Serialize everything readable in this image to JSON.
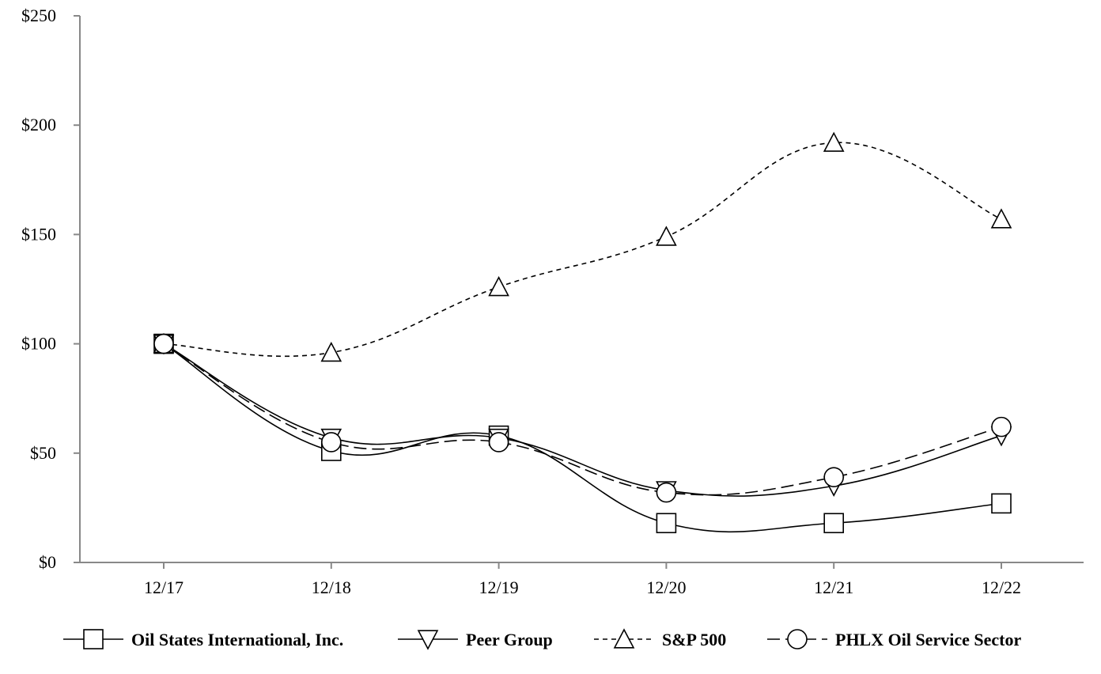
{
  "chart_data": {
    "type": "line",
    "title": "",
    "xlabel": "",
    "ylabel": "",
    "categories": [
      "12/17",
      "12/18",
      "12/19",
      "12/20",
      "12/21",
      "12/22"
    ],
    "ylim": [
      0,
      250
    ],
    "yticks": [
      0,
      50,
      100,
      150,
      200,
      250
    ],
    "ytick_labels": [
      "$0",
      "$50",
      "$100",
      "$150",
      "$200",
      "$250"
    ],
    "grid": false,
    "legend_position": "bottom",
    "series": [
      {
        "name": "Oil States International, Inc.",
        "marker": "square",
        "dash": "solid",
        "color": "#000000",
        "values": [
          100,
          51,
          58,
          18,
          18,
          27
        ]
      },
      {
        "name": "Peer Group",
        "marker": "triangle-down",
        "dash": "solid",
        "color": "#000000",
        "values": [
          100,
          57,
          57,
          33,
          35,
          58
        ]
      },
      {
        "name": "S&P 500",
        "marker": "triangle-up",
        "dash": "dashed-short",
        "color": "#000000",
        "values": [
          100,
          96,
          126,
          149,
          192,
          157
        ]
      },
      {
        "name": "PHLX Oil Service Sector",
        "marker": "circle",
        "dash": "dashed-long",
        "color": "#000000",
        "values": [
          100,
          55,
          55,
          32,
          39,
          62
        ]
      }
    ]
  }
}
